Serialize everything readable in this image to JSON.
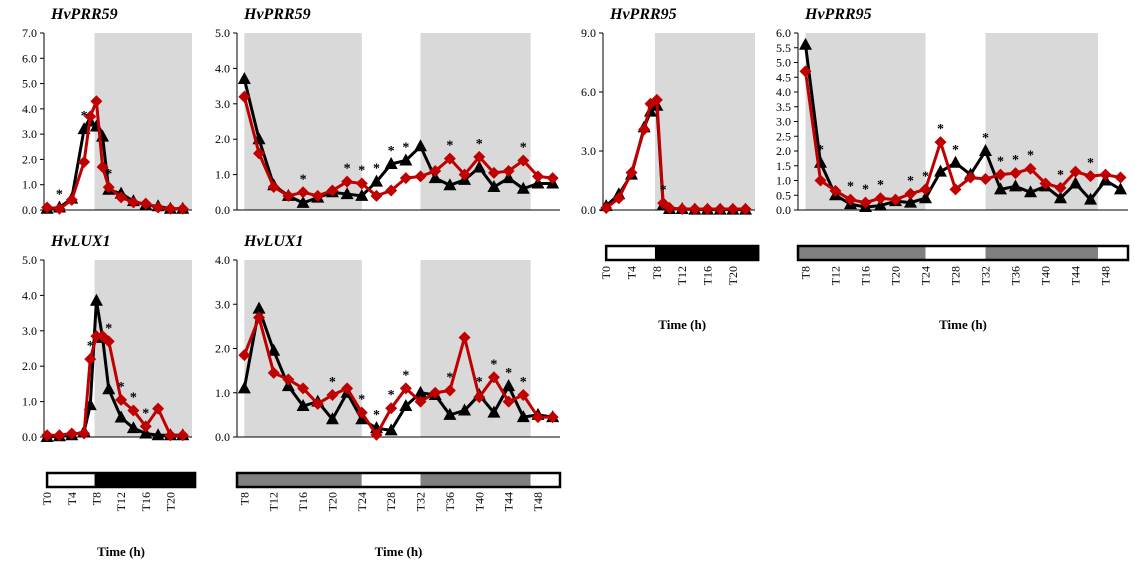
{
  "chart_data": [
    {
      "type": "line",
      "title": "HvPRR59",
      "ylim": [
        0,
        7
      ],
      "yticks": [
        "0.0",
        "1.0",
        "2.0",
        "3.0",
        "4.0",
        "5.0",
        "6.0",
        "7.0"
      ],
      "x": [
        0,
        2,
        4,
        6,
        7,
        8,
        9,
        10,
        12,
        14,
        16,
        18,
        20,
        22
      ],
      "shade_x": [
        7.7,
        24
      ],
      "series": [
        {
          "color": "#000000",
          "marker": "triangle",
          "values": [
            0.05,
            0.1,
            0.45,
            3.2,
            3.5,
            3.3,
            2.9,
            0.8,
            0.65,
            0.35,
            0.2,
            0.15,
            0.05,
            0.05
          ]
        },
        {
          "color": "#c00000",
          "marker": "diamond",
          "values": [
            0.1,
            0.05,
            0.4,
            1.9,
            3.7,
            4.3,
            1.7,
            0.9,
            0.5,
            0.3,
            0.25,
            0.1,
            0.05,
            0.05
          ]
        }
      ],
      "significance_x": [
        2,
        6,
        10
      ]
    },
    {
      "type": "line",
      "title": "HvPRR59",
      "ylim": [
        0,
        5
      ],
      "yticks": [
        "0.0",
        "1.0",
        "2.0",
        "3.0",
        "4.0",
        "5.0"
      ],
      "x": [
        8,
        10,
        12,
        14,
        16,
        18,
        20,
        22,
        24,
        26,
        28,
        30,
        32,
        34,
        36,
        38,
        40,
        42,
        44,
        46,
        48,
        50
      ],
      "shade_x": [
        [
          8,
          24
        ],
        [
          32,
          47
        ]
      ],
      "series": [
        {
          "color": "#000000",
          "marker": "triangle",
          "values": [
            3.7,
            2.0,
            0.7,
            0.4,
            0.2,
            0.35,
            0.5,
            0.45,
            0.4,
            0.8,
            1.3,
            1.4,
            1.8,
            0.9,
            0.7,
            0.85,
            1.2,
            0.65,
            0.9,
            0.6,
            0.75,
            0.75
          ]
        },
        {
          "color": "#c00000",
          "marker": "diamond",
          "values": [
            3.2,
            1.6,
            0.65,
            0.4,
            0.5,
            0.4,
            0.55,
            0.8,
            0.75,
            0.4,
            0.55,
            0.9,
            0.95,
            1.1,
            1.45,
            1.0,
            1.5,
            1.05,
            1.1,
            1.4,
            0.95,
            0.9
          ]
        }
      ],
      "significance_x": [
        16,
        22,
        24,
        26,
        28,
        30,
        36,
        40,
        46
      ]
    },
    {
      "type": "line",
      "title": "HvPRR95",
      "ylim": [
        0,
        9
      ],
      "yticks": [
        "0.0",
        "3.0",
        "6.0",
        "9.0"
      ],
      "x": [
        0,
        2,
        4,
        6,
        7,
        8,
        9,
        10,
        12,
        14,
        16,
        18,
        20,
        22
      ],
      "shade_x": [
        7.7,
        24
      ],
      "series": [
        {
          "color": "#000000",
          "marker": "triangle",
          "values": [
            0.2,
            0.8,
            1.8,
            4.2,
            5.0,
            5.3,
            0.25,
            0.05,
            0.05,
            0.02,
            0.02,
            0.02,
            0.02,
            0.02
          ]
        },
        {
          "color": "#c00000",
          "marker": "diamond",
          "values": [
            0.1,
            0.6,
            1.9,
            4.1,
            5.4,
            5.6,
            0.35,
            0.1,
            0.05,
            0.05,
            0.05,
            0.05,
            0.05,
            0.05
          ]
        }
      ],
      "significance_x": [
        9
      ]
    },
    {
      "type": "line",
      "title": "HvPRR95",
      "ylim": [
        0,
        6
      ],
      "yticks": [
        "0.0",
        "0.5",
        "1.0",
        "1.5",
        "2.0",
        "2.5",
        "3.0",
        "3.5",
        "4.0",
        "4.5",
        "5.0",
        "5.5",
        "6.0"
      ],
      "x": [
        8,
        10,
        12,
        14,
        16,
        18,
        20,
        22,
        24,
        26,
        28,
        30,
        32,
        34,
        36,
        38,
        40,
        42,
        44,
        46,
        48,
        50
      ],
      "shade_x": [
        [
          8,
          24
        ],
        [
          32,
          47
        ]
      ],
      "series": [
        {
          "color": "#000000",
          "marker": "triangle",
          "values": [
            5.6,
            1.6,
            0.5,
            0.2,
            0.1,
            0.15,
            0.3,
            0.25,
            0.4,
            1.3,
            1.6,
            1.2,
            2.0,
            0.7,
            0.8,
            0.6,
            0.8,
            0.4,
            0.9,
            0.35,
            1.0,
            0.7
          ]
        },
        {
          "color": "#c00000",
          "marker": "diamond",
          "values": [
            4.7,
            1.0,
            0.65,
            0.35,
            0.25,
            0.4,
            0.35,
            0.55,
            0.7,
            2.3,
            0.7,
            1.1,
            1.05,
            1.2,
            1.25,
            1.4,
            0.9,
            0.75,
            1.3,
            1.15,
            1.2,
            1.1
          ]
        }
      ],
      "significance_x": [
        10,
        14,
        16,
        18,
        22,
        24,
        26,
        28,
        32,
        34,
        36,
        38,
        42,
        46
      ]
    },
    {
      "type": "line",
      "title": "HvLUX1",
      "ylim": [
        0,
        5
      ],
      "yticks": [
        "0.0",
        "1.0",
        "2.0",
        "3.0",
        "4.0",
        "5.0"
      ],
      "x": [
        0,
        2,
        4,
        6,
        7,
        8,
        9,
        10,
        12,
        14,
        16,
        18,
        20,
        22
      ],
      "shade_x": [
        7.7,
        24
      ],
      "series": [
        {
          "color": "#000000",
          "marker": "triangle",
          "values": [
            0.0,
            0.02,
            0.05,
            0.15,
            0.9,
            3.85,
            2.8,
            1.35,
            0.55,
            0.25,
            0.1,
            0.05,
            0.05,
            0.05
          ]
        },
        {
          "color": "#c00000",
          "marker": "diamond",
          "values": [
            0.05,
            0.05,
            0.1,
            0.1,
            2.2,
            2.85,
            2.85,
            2.7,
            1.05,
            0.75,
            0.3,
            0.8,
            0.05,
            0.05
          ]
        }
      ],
      "significance_x": [
        7,
        10,
        12,
        14,
        16
      ]
    },
    {
      "type": "line",
      "title": "HvLUX1",
      "ylim": [
        0,
        4
      ],
      "yticks": [
        "0.0",
        "1.0",
        "2.0",
        "3.0",
        "4.0"
      ],
      "x": [
        8,
        10,
        12,
        14,
        16,
        18,
        20,
        22,
        24,
        26,
        28,
        30,
        32,
        34,
        36,
        38,
        40,
        42,
        44,
        46,
        48,
        50
      ],
      "shade_x": [
        [
          8,
          24
        ],
        [
          32,
          47
        ]
      ],
      "series": [
        {
          "color": "#000000",
          "marker": "triangle",
          "values": [
            1.1,
            2.9,
            1.95,
            1.15,
            0.7,
            0.8,
            0.4,
            1.0,
            0.4,
            0.2,
            0.15,
            0.7,
            1.0,
            0.95,
            0.5,
            0.6,
            0.95,
            0.55,
            1.15,
            0.45,
            0.5,
            0.45
          ]
        },
        {
          "color": "#c00000",
          "marker": "diamond",
          "values": [
            1.85,
            2.7,
            1.45,
            1.3,
            1.1,
            0.75,
            0.95,
            1.1,
            0.55,
            0.05,
            0.65,
            1.1,
            0.8,
            1.0,
            1.05,
            2.25,
            0.9,
            1.35,
            0.8,
            0.95,
            0.45,
            0.45
          ]
        }
      ],
      "significance_x": [
        20,
        24,
        26,
        28,
        30,
        36,
        40,
        42,
        44,
        46
      ]
    }
  ],
  "timebar_short": {
    "segments": [
      {
        "fill": "#ffffff",
        "x": [
          0,
          7.7
        ]
      },
      {
        "fill": "#000000",
        "x": [
          7.7,
          24
        ]
      }
    ],
    "ticks": [
      {
        "x": 0,
        "label": "T0"
      },
      {
        "x": 4,
        "label": "T4"
      },
      {
        "x": 8,
        "label": "T8"
      },
      {
        "x": 12,
        "label": "T12"
      },
      {
        "x": 16,
        "label": "T16"
      },
      {
        "x": 20,
        "label": "T20"
      }
    ]
  },
  "timebar_long": {
    "segments": [
      {
        "fill": "#808080",
        "x": [
          7,
          24
        ]
      },
      {
        "fill": "#ffffff",
        "x": [
          24,
          32
        ]
      },
      {
        "fill": "#808080",
        "x": [
          32,
          47
        ]
      },
      {
        "fill": "#ffffff",
        "x": [
          47,
          51
        ]
      }
    ],
    "ticks": [
      {
        "x": 8,
        "label": "T8"
      },
      {
        "x": 12,
        "label": "T12"
      },
      {
        "x": 16,
        "label": "T16"
      },
      {
        "x": 20,
        "label": "T20"
      },
      {
        "x": 24,
        "label": "T24"
      },
      {
        "x": 28,
        "label": "T28"
      },
      {
        "x": 32,
        "label": "T32"
      },
      {
        "x": 36,
        "label": "T36"
      },
      {
        "x": 40,
        "label": "T40"
      },
      {
        "x": 44,
        "label": "T44"
      },
      {
        "x": 48,
        "label": "T48"
      }
    ]
  },
  "labels": {
    "time_axis": "Time (h)",
    "significance_mark": "*"
  },
  "colors": {
    "night_shade": "#d9d9d9",
    "wildtype": "#000000",
    "mutant": "#c00000"
  }
}
